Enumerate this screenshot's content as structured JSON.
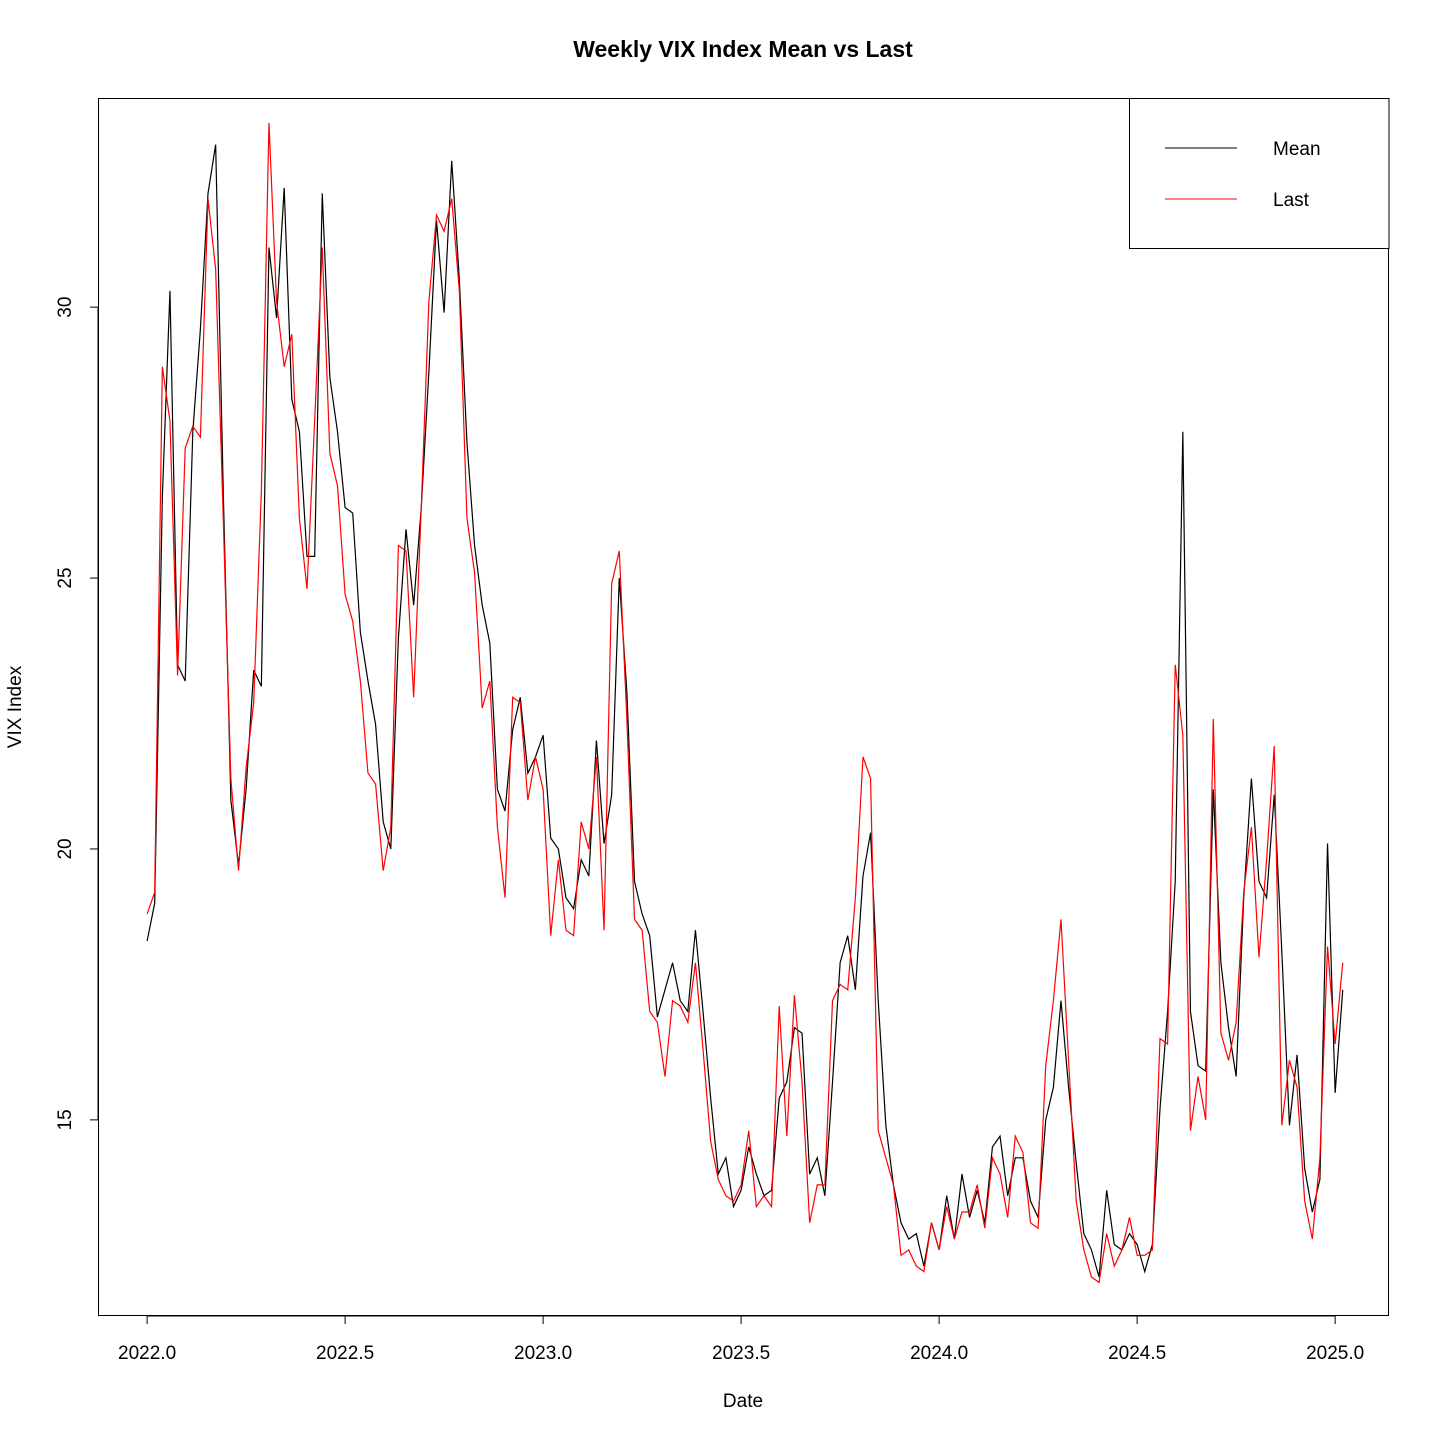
{
  "chart_data": {
    "type": "line",
    "title": "Weekly VIX Index Mean vs Last",
    "x_label": "Date",
    "y_label": "VIX Index",
    "x": [
      2022,
      2022.0192,
      2022.0385,
      2022.0577,
      2022.0769,
      2022.0962,
      2022.1154,
      2022.1346,
      2022.1538,
      2022.1731,
      2022.1923,
      2022.2115,
      2022.2308,
      2022.25,
      2022.2692,
      2022.2885,
      2022.3077,
      2022.3269,
      2022.3462,
      2022.3654,
      2022.3846,
      2022.4038,
      2022.4231,
      2022.4423,
      2022.4615,
      2022.4808,
      2022.5,
      2022.5192,
      2022.5385,
      2022.5577,
      2022.5769,
      2022.5962,
      2022.6154,
      2022.6346,
      2022.6538,
      2022.6731,
      2022.6923,
      2022.7115,
      2022.7308,
      2022.75,
      2022.7692,
      2022.7885,
      2022.8077,
      2022.8269,
      2022.8462,
      2022.8654,
      2022.8846,
      2022.9038,
      2022.9231,
      2022.9423,
      2022.9615,
      2022.9808,
      2023,
      2023.0192,
      2023.0385,
      2023.0577,
      2023.0769,
      2023.0962,
      2023.1154,
      2023.1346,
      2023.1538,
      2023.1731,
      2023.1923,
      2023.2115,
      2023.2308,
      2023.25,
      2023.2692,
      2023.2885,
      2023.3077,
      2023.3269,
      2023.3462,
      2023.3654,
      2023.3846,
      2023.4038,
      2023.4231,
      2023.4423,
      2023.4615,
      2023.4808,
      2023.5,
      2023.5192,
      2023.5385,
      2023.5577,
      2023.5769,
      2023.5962,
      2023.6154,
      2023.6346,
      2023.6538,
      2023.6731,
      2023.6923,
      2023.7115,
      2023.7308,
      2023.75,
      2023.7692,
      2023.7885,
      2023.8077,
      2023.8269,
      2023.8462,
      2023.8654,
      2023.8846,
      2023.9038,
      2023.9231,
      2023.9423,
      2023.9615,
      2023.9808,
      2024,
      2024.0192,
      2024.0385,
      2024.0577,
      2024.0769,
      2024.0962,
      2024.1154,
      2024.1346,
      2024.1538,
      2024.1731,
      2024.1923,
      2024.2115,
      2024.2308,
      2024.25,
      2024.2692,
      2024.2885,
      2024.3077,
      2024.3269,
      2024.3462,
      2024.3654,
      2024.3846,
      2024.4038,
      2024.4231,
      2024.4423,
      2024.4615,
      2024.4808,
      2024.5,
      2024.5192,
      2024.5385,
      2024.5577,
      2024.5769,
      2024.5962,
      2024.6154,
      2024.6346,
      2024.6538,
      2024.6731,
      2024.6923,
      2024.7115,
      2024.7308,
      2024.75,
      2024.7692,
      2024.7885,
      2024.8077,
      2024.8269,
      2024.8462,
      2024.8654,
      2024.8846,
      2024.9038,
      2024.9231,
      2024.9423,
      2024.9615,
      2024.9808,
      2025,
      2025.0192
    ],
    "series": [
      {
        "name": "Mean",
        "color": "#000000",
        "values": [
          18.3,
          19.0,
          26.5,
          30.3,
          23.4,
          23.1,
          27.7,
          29.6,
          32.1,
          33.0,
          26.6,
          20.9,
          19.7,
          21.1,
          23.3,
          23.0,
          31.1,
          29.8,
          32.2,
          28.3,
          27.7,
          25.4,
          25.4,
          32.1,
          28.7,
          27.7,
          26.3,
          26.2,
          24.0,
          23.1,
          22.3,
          20.5,
          20.0,
          23.9,
          25.9,
          24.5,
          26.3,
          28.8,
          31.6,
          29.9,
          32.7,
          30.5,
          27.5,
          25.6,
          24.5,
          23.8,
          21.1,
          20.7,
          22.2,
          22.8,
          21.4,
          21.7,
          22.1,
          20.2,
          20.0,
          19.1,
          18.9,
          19.8,
          19.5,
          22.0,
          20.1,
          21.0,
          25.0,
          22.9,
          19.4,
          18.8,
          18.4,
          16.9,
          17.4,
          17.9,
          17.2,
          17.0,
          18.5,
          17.0,
          15.4,
          14.0,
          14.3,
          13.4,
          13.7,
          14.5,
          14.0,
          13.6,
          13.7,
          15.4,
          15.7,
          16.7,
          16.6,
          14.0,
          14.3,
          13.6,
          15.7,
          17.9,
          18.4,
          17.4,
          19.5,
          20.3,
          17.2,
          14.9,
          13.8,
          13.1,
          12.8,
          12.9,
          12.3,
          13.1,
          12.6,
          13.6,
          12.8,
          14.0,
          13.2,
          13.7,
          13.1,
          14.5,
          14.7,
          13.6,
          14.3,
          14.3,
          13.5,
          13.2,
          15.0,
          15.6,
          17.2,
          15.6,
          14.2,
          12.9,
          12.6,
          12.1,
          13.7,
          12.7,
          12.6,
          12.9,
          12.7,
          12.2,
          12.7,
          15.2,
          17.0,
          19.4,
          27.7,
          17.0,
          16.0,
          15.9,
          21.1,
          17.9,
          16.7,
          15.8,
          19.1,
          21.3,
          19.4,
          19.1,
          21.0,
          18.1,
          14.9,
          16.2,
          14.1,
          13.3,
          13.9,
          20.1,
          15.5,
          17.4
        ]
      },
      {
        "name": "Last",
        "color": "#ff0000",
        "values": [
          18.8,
          19.2,
          28.9,
          27.9,
          23.2,
          27.4,
          27.8,
          27.6,
          32.0,
          30.7,
          26.1,
          21.3,
          19.6,
          21.5,
          22.7,
          26.6,
          33.4,
          30.1,
          28.9,
          29.5,
          26.1,
          24.8,
          27.9,
          31.1,
          27.3,
          26.7,
          24.7,
          24.2,
          23.1,
          21.4,
          21.2,
          19.6,
          20.4,
          25.6,
          25.5,
          22.8,
          26.3,
          30.1,
          31.7,
          31.4,
          32.0,
          30.3,
          26.1,
          25.1,
          22.6,
          23.1,
          20.4,
          19.1,
          22.8,
          22.7,
          20.9,
          21.7,
          21.1,
          18.4,
          19.8,
          18.5,
          18.4,
          20.5,
          20.0,
          21.7,
          18.5,
          24.9,
          25.5,
          22.4,
          18.7,
          18.5,
          17.0,
          16.8,
          15.8,
          17.2,
          17.1,
          16.8,
          17.9,
          16.3,
          14.6,
          13.9,
          13.6,
          13.5,
          13.8,
          14.8,
          13.4,
          13.6,
          13.4,
          17.1,
          14.7,
          17.3,
          15.7,
          13.1,
          13.8,
          13.8,
          17.2,
          17.5,
          17.4,
          19.1,
          21.7,
          21.3,
          14.8,
          14.3,
          13.8,
          12.5,
          12.6,
          12.3,
          12.2,
          13.1,
          12.6,
          13.4,
          12.8,
          13.3,
          13.3,
          13.8,
          13.0,
          14.3,
          14.0,
          13.2,
          14.7,
          14.4,
          13.1,
          13.0,
          16.0,
          17.2,
          18.7,
          16.1,
          13.5,
          12.6,
          12.1,
          12.0,
          12.9,
          12.3,
          12.6,
          13.2,
          12.5,
          12.5,
          12.6,
          16.5,
          16.4,
          23.4,
          22.1,
          14.8,
          15.8,
          15.0,
          22.4,
          16.6,
          16.1,
          16.8,
          19.2,
          20.4,
          18.0,
          19.8,
          21.9,
          14.9,
          16.1,
          15.6,
          13.5,
          12.8,
          14.3,
          18.2,
          16.4,
          17.9
        ]
      }
    ],
    "xlim": [
      2021.876,
      2025.136
    ],
    "ylim": [
      11.38,
      33.86
    ],
    "xticks": [
      {
        "value": 2022,
        "label": "2022.0"
      },
      {
        "value": 2022.5,
        "label": "2022.5"
      },
      {
        "value": 2023,
        "label": "2023.0"
      },
      {
        "value": 2023.5,
        "label": "2023.5"
      },
      {
        "value": 2024,
        "label": "2024.0"
      },
      {
        "value": 2024.5,
        "label": "2024.5"
      },
      {
        "value": 2025,
        "label": "2025.0"
      }
    ],
    "yticks": [
      15,
      20,
      25,
      30
    ],
    "legend": "top-right",
    "grid": false
  }
}
